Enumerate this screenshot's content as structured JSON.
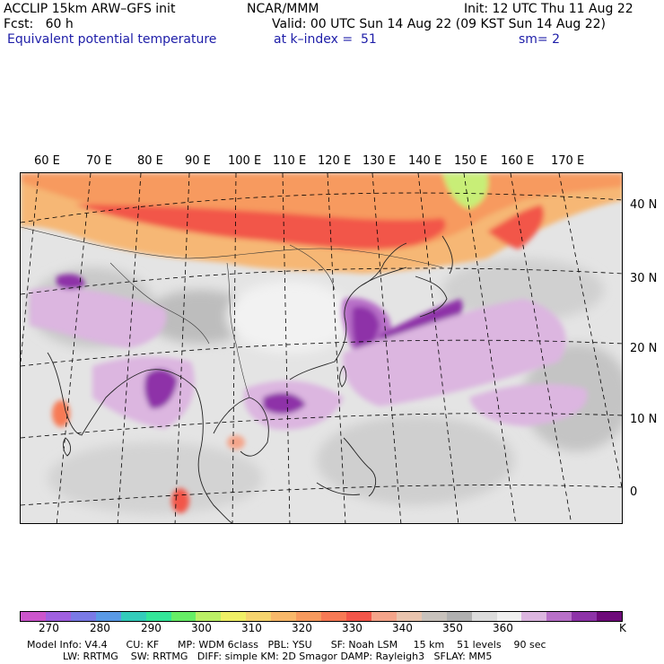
{
  "header": {
    "model": "ACCLIP 15km ARW–GFS init",
    "org": "NCAR/MMM",
    "init": "Init: 12 UTC Thu 11 Aug 22",
    "fcst": "Fcst:   60 h",
    "valid": "Valid: 00 UTC Sun 14 Aug 22 (09 KST Sun 14 Aug 22)",
    "field": "Equivalent potential temperature",
    "level": "at k–index =  51",
    "smooth": "sm= 2"
  },
  "lon_labels": [
    "60 E",
    "70 E",
    "80 E",
    "90 E",
    "100 E",
    "110 E",
    "120 E",
    "130 E",
    "140 E",
    "150 E",
    "160 E",
    "170 E"
  ],
  "lat_labels": [
    "40 N",
    "30 N",
    "20 N",
    "10 N",
    "0"
  ],
  "colorbar": {
    "colors": [
      "#cc55cc",
      "#a060e0",
      "#7a7ae6",
      "#5a9ae6",
      "#33ccbb",
      "#33e699",
      "#66ee66",
      "#bbf066",
      "#f0f066",
      "#f6d46e",
      "#f8b86a",
      "#f79a5e",
      "#f77a55",
      "#f2564a",
      "#f4a48a",
      "#e9c4ae",
      "#c8c2bc",
      "#b0b0b0",
      "#dcdcdc",
      "#f0f0f0",
      "#dcb6e0",
      "#b870c8",
      "#8e33a8",
      "#6e0a7a"
    ],
    "labels": [
      "270",
      "280",
      "290",
      "300",
      "310",
      "320",
      "330",
      "340",
      "350",
      "360",
      "K"
    ]
  },
  "footer": {
    "line1": "Model Info: V4.4      CU: KF      MP: WDM 6class   PBL: YSU      SF: Noah LSM     15 km    51 levels    90 sec",
    "line2": "LW: RRTMG    SW: RRTMG   DIFF: simple KM: 2D Smagor DAMP: Rayleigh3   SFLAY: MM5"
  }
}
